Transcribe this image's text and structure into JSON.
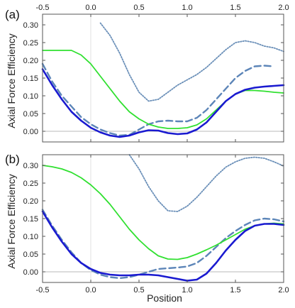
{
  "figure": {
    "ylabel": "Axial Force Efficiency",
    "xlabel": "Position"
  },
  "chart_data": [
    {
      "type": "line",
      "panel_label": "(a)",
      "xlim": [
        -0.5,
        2.0
      ],
      "ylim": [
        -0.03,
        0.33
      ],
      "x_ticks": [
        -0.5,
        0.0,
        0.5,
        1.0,
        1.5,
        2.0
      ],
      "x_tick_labels_top": [
        "-0.5",
        "0.0",
        "0.5",
        "1.0",
        "1.5",
        "2.0"
      ],
      "y_ticks": [
        0.0,
        0.05,
        0.1,
        0.15,
        0.2,
        0.25,
        0.3
      ],
      "y_tick_labels": [
        "0.00",
        "0.05",
        "0.10",
        "0.15",
        "0.20",
        "0.25",
        "0.30"
      ],
      "reference_lines": {
        "y": 0,
        "x": 0
      },
      "series": [
        {
          "color": "#6a8fb8",
          "style": "dotted",
          "x": [
            0.1,
            0.2,
            0.3,
            0.4,
            0.5,
            0.6,
            0.7,
            0.8,
            0.9,
            1.0,
            1.1,
            1.2,
            1.3,
            1.4,
            1.5,
            1.6,
            1.7,
            1.8,
            1.9,
            2.0
          ],
          "y": [
            0.305,
            0.27,
            0.22,
            0.16,
            0.11,
            0.085,
            0.09,
            0.11,
            0.13,
            0.145,
            0.16,
            0.18,
            0.205,
            0.23,
            0.25,
            0.255,
            0.25,
            0.24,
            0.235,
            0.225
          ]
        },
        {
          "color": "#5c85b8",
          "style": "dashed",
          "x": [
            -0.5,
            -0.4,
            -0.3,
            -0.2,
            -0.1,
            0.0,
            0.1,
            0.2,
            0.3,
            0.4,
            0.5,
            0.6,
            0.7,
            0.8,
            0.9,
            1.0,
            1.1,
            1.2,
            1.3,
            1.4,
            1.5,
            1.6,
            1.7,
            1.8,
            1.9
          ],
          "y": [
            0.19,
            0.14,
            0.1,
            0.07,
            0.04,
            0.02,
            0.005,
            -0.005,
            -0.012,
            -0.01,
            0.005,
            0.02,
            0.028,
            0.03,
            0.028,
            0.028,
            0.038,
            0.06,
            0.09,
            0.12,
            0.15,
            0.17,
            0.183,
            0.185,
            0.183
          ]
        },
        {
          "color": "#30e030",
          "style": "solid",
          "x": [
            -0.5,
            -0.4,
            -0.3,
            -0.2,
            -0.1,
            0.0,
            0.1,
            0.2,
            0.3,
            0.4,
            0.5,
            0.6,
            0.7,
            0.8,
            0.9,
            1.0,
            1.1,
            1.2,
            1.3,
            1.4,
            1.5,
            1.6,
            1.7,
            1.8,
            1.9,
            2.0
          ],
          "y": [
            0.228,
            0.228,
            0.228,
            0.228,
            0.215,
            0.19,
            0.155,
            0.12,
            0.085,
            0.055,
            0.035,
            0.02,
            0.012,
            0.008,
            0.008,
            0.01,
            0.018,
            0.035,
            0.06,
            0.085,
            0.105,
            0.115,
            0.115,
            0.113,
            0.11,
            0.108
          ]
        },
        {
          "color": "#1a1ad0",
          "style": "solid",
          "x": [
            -0.5,
            -0.4,
            -0.3,
            -0.2,
            -0.1,
            0.0,
            0.1,
            0.2,
            0.3,
            0.4,
            0.5,
            0.6,
            0.7,
            0.8,
            0.9,
            1.0,
            1.1,
            1.2,
            1.3,
            1.4,
            1.5,
            1.6,
            1.7,
            1.8,
            1.9,
            2.0
          ],
          "y": [
            0.175,
            0.13,
            0.09,
            0.055,
            0.03,
            0.01,
            -0.003,
            -0.012,
            -0.016,
            -0.012,
            -0.003,
            0.003,
            0.002,
            -0.005,
            -0.008,
            -0.006,
            0.005,
            0.025,
            0.055,
            0.085,
            0.105,
            0.117,
            0.123,
            0.126,
            0.128,
            0.13
          ]
        }
      ]
    },
    {
      "type": "line",
      "panel_label": "(b)",
      "xlim": [
        -0.5,
        2.0
      ],
      "ylim": [
        -0.03,
        0.33
      ],
      "x_ticks": [
        -0.5,
        0.0,
        0.5,
        1.0,
        1.5,
        2.0
      ],
      "x_tick_labels": [
        "-0.5",
        "0.0",
        "0.5",
        "1.0",
        "1.5",
        "2.0"
      ],
      "y_ticks": [
        0.0,
        0.05,
        0.1,
        0.15,
        0.2,
        0.25,
        0.3
      ],
      "y_tick_labels": [
        "0.00",
        "0.05",
        "0.10",
        "0.15",
        "0.20",
        "0.25",
        "0.30"
      ],
      "reference_lines": {
        "y": 0,
        "x": 0
      },
      "series": [
        {
          "color": "#6a8fb8",
          "style": "dotted",
          "x": [
            0.4,
            0.5,
            0.6,
            0.7,
            0.8,
            0.9,
            1.0,
            1.1,
            1.2,
            1.3,
            1.4,
            1.5,
            1.6,
            1.7,
            1.8,
            1.9,
            2.0
          ],
          "y": [
            0.33,
            0.29,
            0.24,
            0.2,
            0.172,
            0.17,
            0.185,
            0.21,
            0.24,
            0.27,
            0.295,
            0.31,
            0.32,
            0.323,
            0.32,
            0.31,
            0.298
          ]
        },
        {
          "color": "#5c85b8",
          "style": "dashed",
          "x": [
            -0.5,
            -0.4,
            -0.3,
            -0.2,
            -0.1,
            0.0,
            0.1,
            0.2,
            0.3,
            0.4,
            0.5,
            0.6,
            0.7,
            0.8,
            0.9,
            1.0,
            1.1,
            1.2,
            1.3,
            1.4,
            1.5,
            1.6,
            1.7,
            1.8,
            1.9,
            2.0
          ],
          "y": [
            0.175,
            0.13,
            0.09,
            0.055,
            0.025,
            0.005,
            -0.008,
            -0.015,
            -0.018,
            -0.015,
            -0.008,
            0.0,
            0.008,
            0.01,
            0.012,
            0.015,
            0.025,
            0.045,
            0.07,
            0.095,
            0.115,
            0.132,
            0.145,
            0.15,
            0.148,
            0.142
          ]
        },
        {
          "color": "#30e030",
          "style": "solid",
          "x": [
            -0.5,
            -0.4,
            -0.3,
            -0.2,
            -0.1,
            0.0,
            0.1,
            0.2,
            0.3,
            0.4,
            0.5,
            0.6,
            0.7,
            0.8,
            0.9,
            1.0,
            1.1,
            1.2,
            1.3,
            1.4,
            1.5,
            1.6,
            1.7,
            1.8,
            1.9,
            2.0
          ],
          "y": [
            0.3,
            0.296,
            0.29,
            0.28,
            0.265,
            0.245,
            0.22,
            0.19,
            0.155,
            0.12,
            0.09,
            0.065,
            0.045,
            0.036,
            0.035,
            0.04,
            0.05,
            0.062,
            0.075,
            0.09,
            0.105,
            0.12,
            0.13,
            0.135,
            0.137,
            0.135
          ]
        },
        {
          "color": "#1a1ad0",
          "style": "solid",
          "x": [
            -0.5,
            -0.4,
            -0.3,
            -0.2,
            -0.1,
            0.0,
            0.1,
            0.2,
            0.3,
            0.4,
            0.5,
            0.6,
            0.7,
            0.8,
            0.9,
            1.0,
            1.1,
            1.2,
            1.3,
            1.4,
            1.5,
            1.6,
            1.7,
            1.8,
            1.9,
            2.0
          ],
          "y": [
            0.17,
            0.125,
            0.085,
            0.05,
            0.025,
            0.008,
            -0.003,
            -0.008,
            -0.01,
            -0.01,
            -0.008,
            -0.008,
            -0.01,
            -0.015,
            -0.02,
            -0.025,
            -0.022,
            -0.005,
            0.025,
            0.06,
            0.09,
            0.115,
            0.13,
            0.135,
            0.135,
            0.132
          ]
        }
      ]
    }
  ]
}
